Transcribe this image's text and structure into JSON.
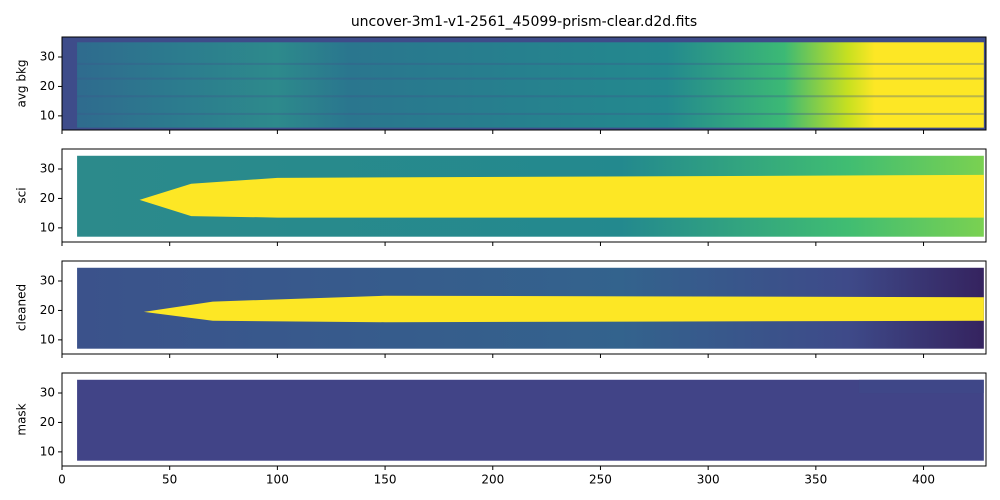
{
  "chart_data": [
    {
      "type": "image",
      "title": "uncover-3m1-v1-2561_45099-prism-clear.d2d.fits",
      "ylabel": "avg bkg",
      "xlim": [
        0,
        429
      ],
      "ylim": [
        5.2,
        36.8
      ],
      "yticks": [
        10,
        20,
        30
      ]
    },
    {
      "type": "image",
      "ylabel": "sci",
      "xlim": [
        0,
        429
      ],
      "ylim": [
        5.2,
        36.8
      ],
      "yticks": [
        10,
        20,
        30
      ]
    },
    {
      "type": "image",
      "ylabel": "cleaned",
      "xlim": [
        0,
        429
      ],
      "ylim": [
        5.2,
        36.8
      ],
      "yticks": [
        10,
        20,
        30
      ]
    },
    {
      "type": "image",
      "ylabel": "mask",
      "xlim": [
        0,
        429
      ],
      "ylim": [
        5.2,
        36.8
      ],
      "yticks": [
        10,
        20,
        30
      ],
      "xticks": [
        0,
        50,
        100,
        150,
        200,
        250,
        300,
        350,
        400
      ]
    }
  ]
}
